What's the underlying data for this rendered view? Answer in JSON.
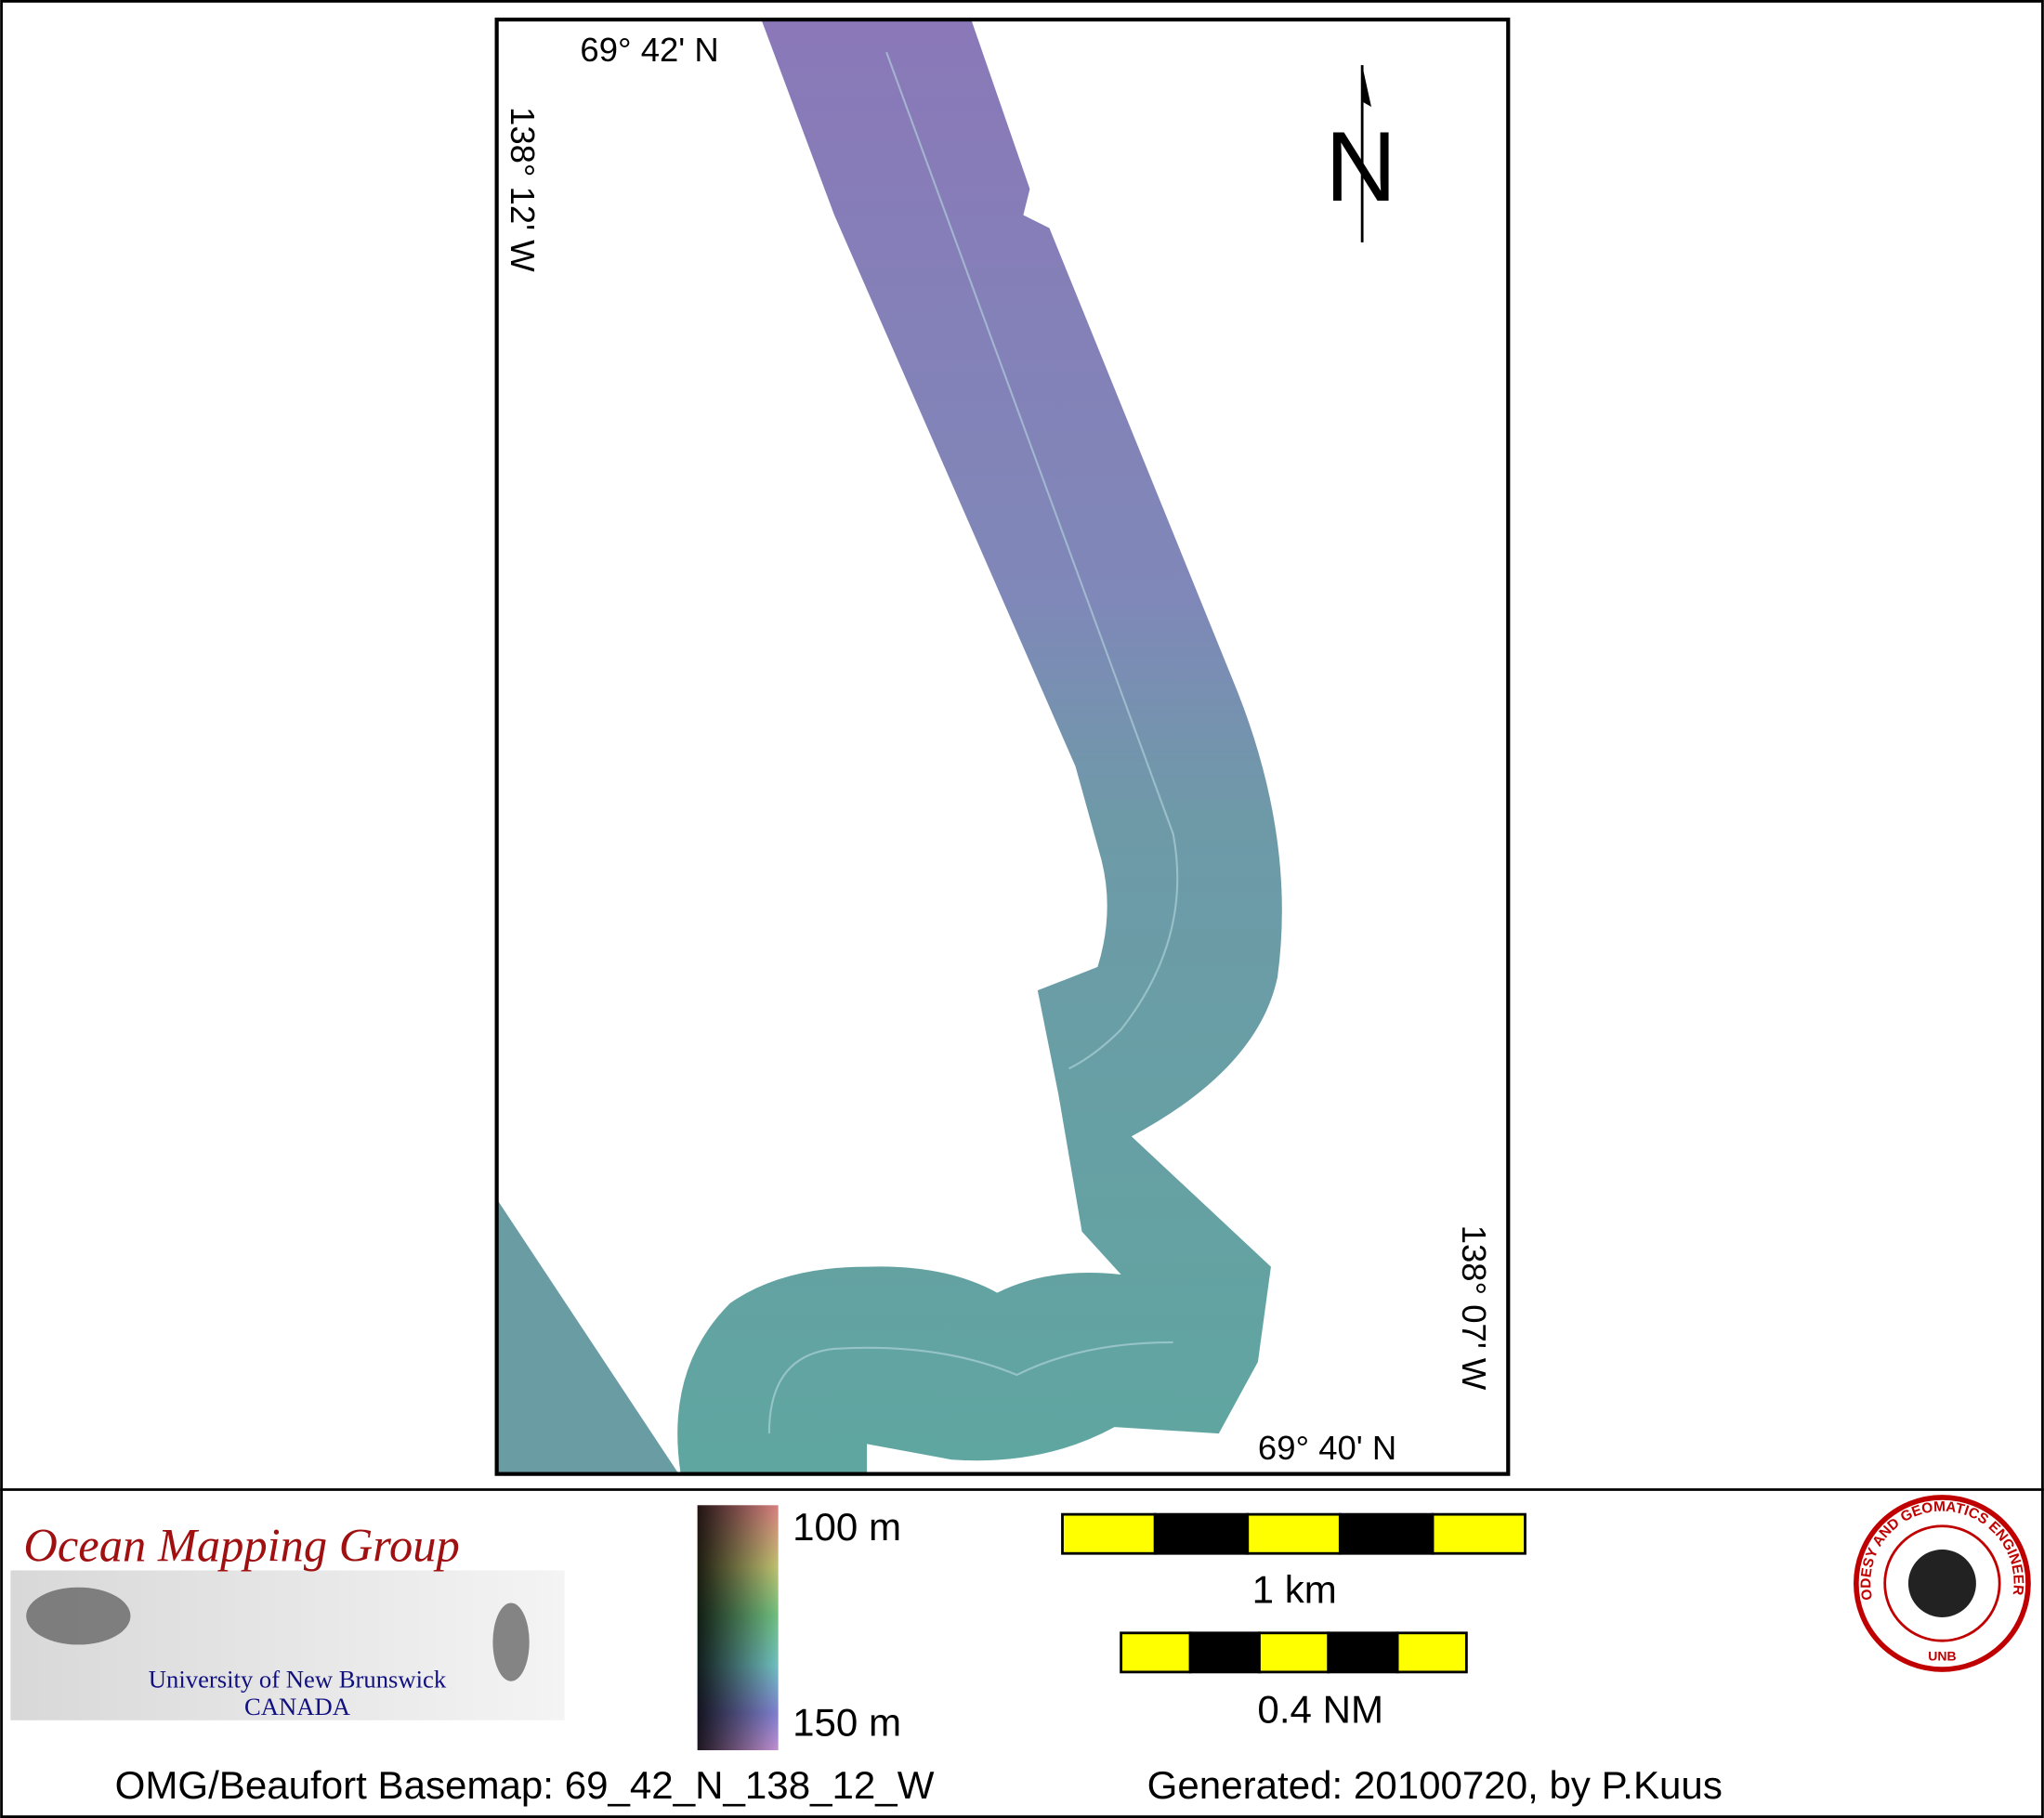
{
  "map": {
    "corner_labels": {
      "top_lat": "69° 42' N",
      "left_lon": "138° 12' W",
      "right_lon": "138° 07' W",
      "bottom_lat": "69° 40' N"
    },
    "north": "N",
    "logo": {
      "title": "Ocean Mapping Group",
      "university": "University of New Brunswick",
      "country": "CANADA"
    },
    "depth_scale": {
      "top": "100 m",
      "bottom": "150 m"
    },
    "scale_bars": [
      "1 km",
      "0.4 NM"
    ],
    "seal": {
      "ring": "GEODESY AND GEOMATICS ENGINEERING",
      "bottom": "UNB"
    },
    "footer": {
      "left": "OMG/Beaufort Basemap: 69_42_N_138_12_W",
      "right": "Generated: 20100720, by P.Kuus"
    }
  }
}
